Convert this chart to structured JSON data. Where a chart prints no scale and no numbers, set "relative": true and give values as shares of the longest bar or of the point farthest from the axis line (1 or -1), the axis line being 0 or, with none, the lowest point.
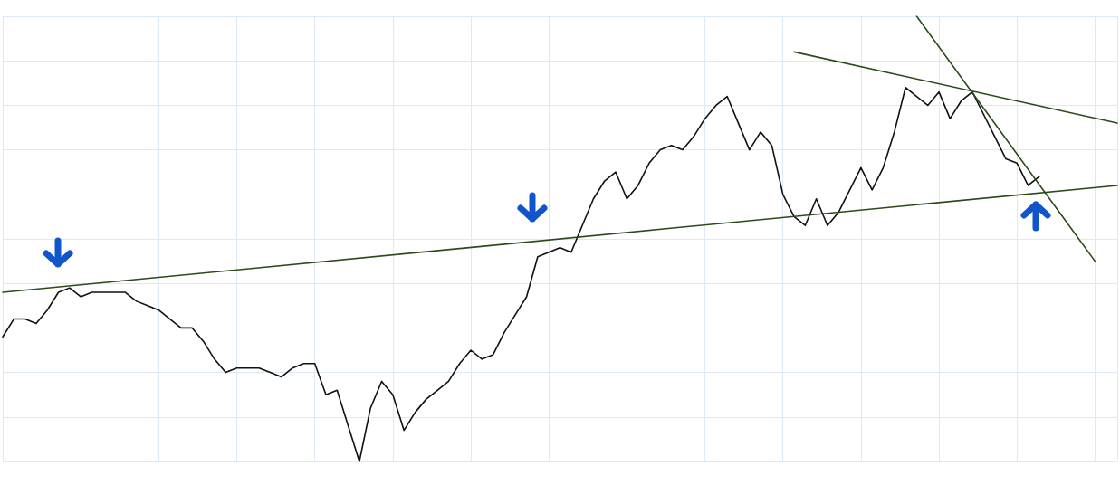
{
  "chart_data": {
    "type": "line",
    "relative": true,
    "grid": true,
    "marker": "none",
    "line_style": "solid",
    "categories": [
      null,
      null,
      null,
      null,
      null,
      null,
      null,
      null,
      null,
      null,
      null,
      null,
      null,
      null,
      null,
      null,
      null,
      null,
      null,
      null,
      null,
      null,
      null,
      null,
      null,
      null,
      null,
      null,
      null,
      null,
      null,
      null,
      null,
      null,
      null,
      null,
      null,
      null,
      null,
      null,
      null,
      null,
      null,
      null,
      null,
      null,
      null,
      null,
      null,
      null,
      null,
      null,
      null,
      null,
      null,
      null,
      null,
      null,
      null,
      null,
      null,
      null,
      null,
      null,
      null,
      null,
      null,
      null,
      null,
      null,
      null,
      null,
      null,
      null,
      null,
      null,
      null,
      null,
      null,
      null,
      null,
      null,
      null,
      null,
      null,
      null,
      null,
      null,
      null,
      null,
      null,
      null,
      null,
      null,
      null,
      null,
      null,
      null,
      null,
      null,
      null
    ],
    "series": [
      {
        "color": "#111111",
        "values": [
          0.28,
          0.32,
          0.32,
          0.31,
          0.34,
          0.38,
          0.39,
          0.37,
          0.38,
          0.38,
          0.38,
          0.38,
          0.36,
          0.35,
          0.34,
          0.32,
          0.3,
          0.3,
          0.27,
          0.23,
          0.2,
          0.21,
          0.21,
          0.21,
          0.2,
          0.19,
          0.21,
          0.22,
          0.22,
          0.15,
          0.16,
          0.08,
          0.0,
          0.12,
          0.18,
          0.15,
          0.07,
          0.11,
          0.14,
          0.16,
          0.18,
          0.22,
          0.25,
          0.23,
          0.24,
          0.29,
          0.33,
          0.37,
          0.46,
          0.47,
          0.48,
          0.47,
          0.53,
          0.59,
          0.63,
          0.65,
          0.59,
          0.62,
          0.67,
          0.7,
          0.71,
          0.7,
          0.73,
          0.77,
          0.8,
          0.82,
          0.76,
          0.7,
          0.74,
          0.71,
          0.6,
          0.55,
          0.53,
          0.59,
          0.53,
          0.56,
          0.61,
          0.66,
          0.61,
          0.66,
          0.74,
          0.84,
          0.82,
          0.8,
          0.83,
          0.77,
          0.81,
          0.83,
          0.78,
          0.73,
          0.68,
          0.67,
          0.62,
          0.64,
          null,
          null,
          null,
          null,
          null,
          null,
          null
        ]
      },
      {
        "color": "#2b4a1a",
        "values": [
          0.38,
          null,
          null,
          null,
          null,
          null,
          null,
          null,
          null,
          null,
          null,
          null,
          null,
          null,
          null,
          null,
          null,
          null,
          null,
          null,
          null,
          null,
          null,
          null,
          null,
          null,
          null,
          null,
          null,
          null,
          null,
          null,
          null,
          null,
          null,
          null,
          null,
          null,
          null,
          null,
          null,
          null,
          null,
          null,
          null,
          null,
          null,
          null,
          null,
          null,
          null,
          null,
          null,
          null,
          null,
          null,
          null,
          null,
          null,
          null,
          null,
          null,
          null,
          null,
          null,
          null,
          null,
          null,
          null,
          null,
          null,
          null,
          null,
          null,
          null,
          null,
          null,
          null,
          null,
          null,
          null,
          null,
          null,
          null,
          null,
          null,
          null,
          null,
          null,
          null,
          null,
          null,
          null,
          null,
          null,
          null,
          null,
          null,
          null,
          null,
          0.62
        ]
      },
      {
        "color": "#2b4a1a",
        "values": [
          null,
          null,
          null,
          null,
          null,
          null,
          null,
          null,
          null,
          null,
          null,
          null,
          null,
          null,
          null,
          null,
          null,
          null,
          null,
          null,
          null,
          null,
          null,
          null,
          null,
          null,
          null,
          null,
          null,
          null,
          null,
          null,
          null,
          null,
          null,
          null,
          null,
          null,
          null,
          null,
          null,
          null,
          null,
          null,
          null,
          null,
          null,
          null,
          null,
          null,
          null,
          null,
          null,
          null,
          null,
          null,
          null,
          null,
          null,
          null,
          null,
          null,
          null,
          null,
          null,
          null,
          null,
          null,
          null,
          null,
          null,
          0.92,
          null,
          null,
          null,
          null,
          null,
          null,
          null,
          null,
          null,
          null,
          null,
          null,
          null,
          null,
          null,
          null,
          null,
          null,
          null,
          null,
          null,
          null,
          null,
          null,
          null,
          null,
          null,
          null,
          0.76
        ]
      },
      {
        "color": "#2b4a1a",
        "values": [
          null,
          null,
          null,
          null,
          null,
          null,
          null,
          null,
          null,
          null,
          null,
          null,
          null,
          null,
          null,
          null,
          null,
          null,
          null,
          null,
          null,
          null,
          null,
          null,
          null,
          null,
          null,
          null,
          null,
          null,
          null,
          null,
          null,
          null,
          null,
          null,
          null,
          null,
          null,
          null,
          null,
          null,
          null,
          null,
          null,
          null,
          null,
          null,
          null,
          null,
          null,
          null,
          null,
          null,
          null,
          null,
          null,
          null,
          null,
          null,
          null,
          null,
          null,
          null,
          null,
          null,
          null,
          null,
          null,
          null,
          null,
          null,
          null,
          null,
          null,
          null,
          null,
          null,
          null,
          null,
          null,
          null,
          1.0,
          null,
          null,
          null,
          null,
          null,
          null,
          null,
          null,
          null,
          null,
          null,
          null,
          null,
          null,
          null,
          0.45,
          null,
          null
        ]
      }
    ]
  }
}
